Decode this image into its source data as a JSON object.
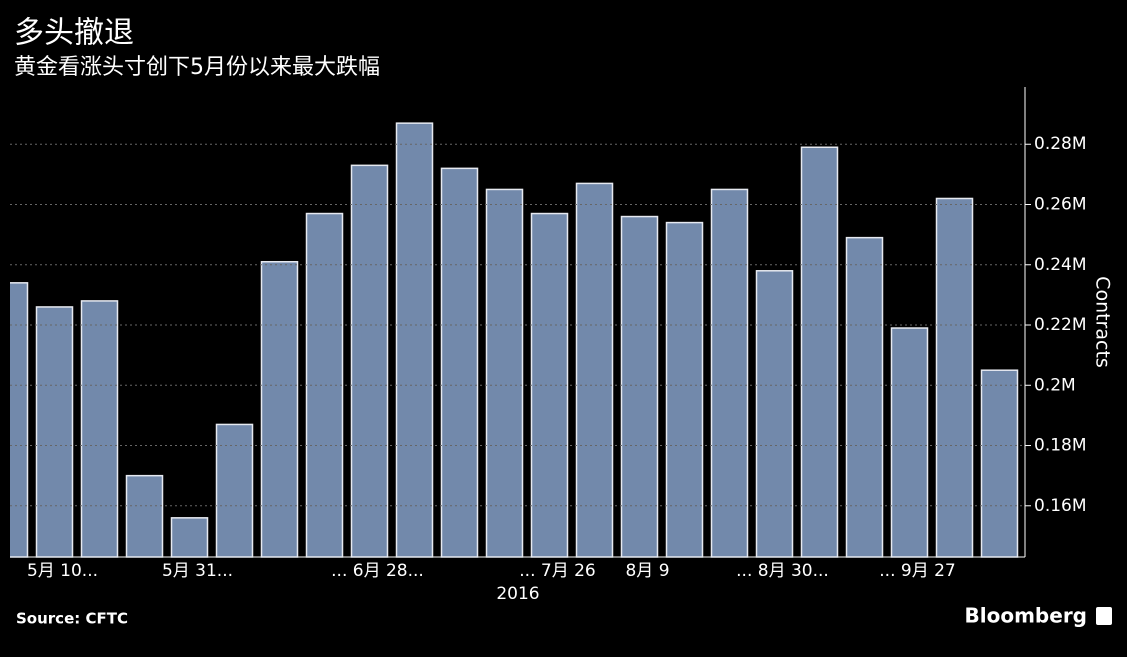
{
  "chart_data": {
    "type": "bar",
    "title": "多头撤退",
    "subtitle": "黄金看涨头寸创下5月份以来最大跌幅",
    "y_axis_label": "Contracts",
    "year_label": "2016",
    "source": "Source: CFTC",
    "brand": "Bloomberg",
    "categories": [
      null,
      "5月 10...",
      null,
      null,
      "5月 31...",
      null,
      null,
      null,
      "... 6月 28...",
      null,
      null,
      null,
      "... 7月 26",
      null,
      "8月 9",
      null,
      null,
      "... 8月 30...",
      null,
      null,
      "... 9月 27",
      null,
      null
    ],
    "values": [
      234000,
      226000,
      228000,
      170000,
      156000,
      187000,
      241000,
      257000,
      273000,
      287000,
      272000,
      265000,
      257000,
      267000,
      256000,
      254000,
      265000,
      238000,
      279000,
      249000,
      219000,
      262000,
      205000
    ],
    "color": "#7289ab",
    "ylim": [
      143000,
      299000
    ],
    "yticks": [
      {
        "value": 160000,
        "label": "0.16M"
      },
      {
        "value": 180000,
        "label": "0.18M"
      },
      {
        "value": 200000,
        "label": "0.2M"
      },
      {
        "value": 220000,
        "label": "0.22M"
      },
      {
        "value": 240000,
        "label": "0.24M"
      },
      {
        "value": 260000,
        "label": "0.26M"
      },
      {
        "value": 280000,
        "label": "0.28M"
      }
    ],
    "grid": true
  }
}
